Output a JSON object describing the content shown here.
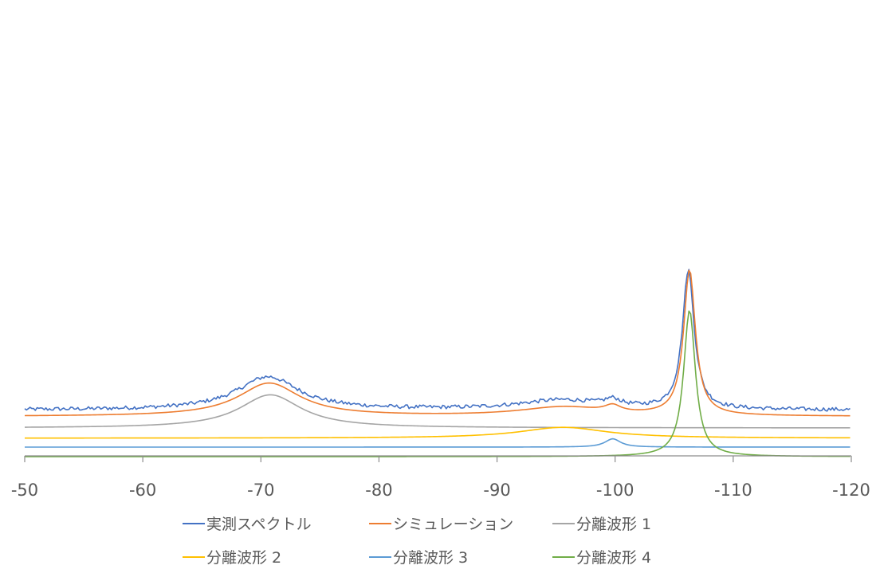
{
  "chart_data": {
    "type": "line",
    "title": "",
    "xlabel": "",
    "ylabel": "",
    "x_axis": {
      "min": -50,
      "max": -120,
      "reversed": true,
      "ticks": [
        -50,
        -60,
        -70,
        -80,
        -90,
        -100,
        -110,
        -120
      ],
      "tick_labels": [
        "-50",
        "-60",
        "-70",
        "-80",
        "-90",
        "-100",
        "-110",
        "-120"
      ]
    },
    "y_axis": {
      "visible": false,
      "units": "arbitrary intensity"
    },
    "grid": false,
    "legend_position": "bottom",
    "series": [
      {
        "name": "実測スペクトル",
        "color": "#4472C4",
        "noisy": true,
        "baseline": 0.38,
        "peaks": [
          {
            "center": -70.6,
            "height": 0.52,
            "width": 3.2
          },
          {
            "center": -95.5,
            "height": 0.15,
            "width": 4.5
          },
          {
            "center": -99.8,
            "height": 0.1,
            "width": 0.8
          },
          {
            "center": -106.2,
            "height": 2.18,
            "width": 0.6
          }
        ]
      },
      {
        "name": "シミュレーション",
        "color": "#ED7D31",
        "noisy": false,
        "baseline": 0.28,
        "peaks": [
          {
            "center": -70.7,
            "height": 0.52,
            "width": 3.2
          },
          {
            "center": -95.6,
            "height": 0.14,
            "width": 4.5
          },
          {
            "center": -99.8,
            "height": 0.1,
            "width": 0.8
          },
          {
            "center": -106.3,
            "height": 2.28,
            "width": 0.6
          }
        ]
      },
      {
        "name": "分離波形 1",
        "color": "#A5A5A5",
        "noisy": false,
        "baseline": 0.1,
        "peaks": [
          {
            "center": -70.8,
            "height": 0.52,
            "width": 3.2
          }
        ]
      },
      {
        "name": "分離波形 2",
        "color": "#FFC000",
        "noisy": false,
        "baseline": -0.06,
        "peaks": [
          {
            "center": -95.6,
            "height": 0.17,
            "width": 4.5
          }
        ]
      },
      {
        "name": "分離波形 3",
        "color": "#5B9BD5",
        "noisy": false,
        "baseline": -0.2,
        "peaks": [
          {
            "center": -99.8,
            "height": 0.13,
            "width": 0.8
          }
        ]
      },
      {
        "name": "分離波形 4",
        "color": "#70AD47",
        "noisy": false,
        "baseline": -0.35,
        "peaks": [
          {
            "center": -106.3,
            "height": 2.3,
            "width": 0.6
          }
        ]
      }
    ],
    "legend": {
      "rows": [
        [
          "実測スペクトル",
          "シミュレーション",
          "分離波形 1"
        ],
        [
          "分離波形 2",
          "分離波形 3",
          "分離波形 4"
        ]
      ]
    }
  }
}
